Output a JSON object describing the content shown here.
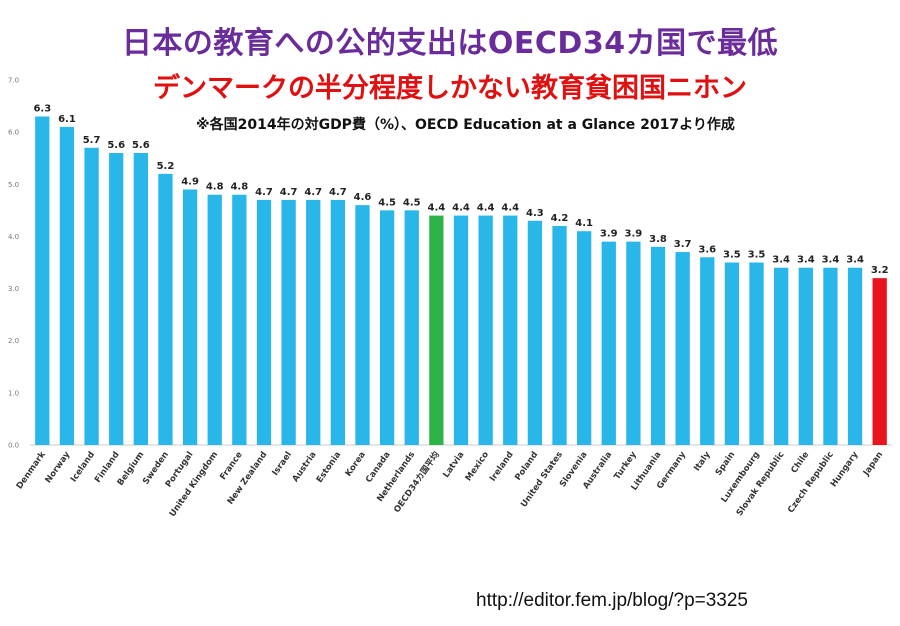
{
  "title": "日本の教育への公的支出はOECD34カ国で最低",
  "subtitle": "デンマークの半分程度しかない教育貧困国ニホン",
  "note": "※各国2014年の対GDP費（%）、OECD Education at a Glance 2017より作成",
  "source_url": "http://editor.fem.jp/blog/?p=3325",
  "colors": {
    "default_bar": "#29b6e8",
    "average_bar": "#2db34a",
    "japan_bar": "#e8141e",
    "title": "#6a2c9a",
    "subtitle": "#e01010"
  },
  "chart_data": {
    "type": "bar",
    "categories": [
      "Denmark",
      "Norway",
      "Iceland",
      "Finland",
      "Belgium",
      "Sweden",
      "Portugal",
      "United Kingdom",
      "France",
      "New Zealand",
      "Israel",
      "Austria",
      "Estonia",
      "Korea",
      "Canada",
      "Netherlands",
      "OECD34カ国平均",
      "Latvia",
      "Mexico",
      "Ireland",
      "Poland",
      "United States",
      "Slovenia",
      "Australia",
      "Turkey",
      "Lithuania",
      "Germany",
      "Italy",
      "Spain",
      "Luxembourg",
      "Slovak Republic",
      "Chile",
      "Czech Republic",
      "Hungary",
      "Japan"
    ],
    "values": [
      6.3,
      6.1,
      5.7,
      5.6,
      5.6,
      5.2,
      4.9,
      4.8,
      4.8,
      4.7,
      4.7,
      4.7,
      4.7,
      4.6,
      4.5,
      4.5,
      4.4,
      4.4,
      4.4,
      4.4,
      4.3,
      4.2,
      4.1,
      3.9,
      3.9,
      3.8,
      3.7,
      3.6,
      3.5,
      3.5,
      3.4,
      3.4,
      3.4,
      3.4,
      3.2
    ],
    "data_labels": [
      "6.3",
      "6.1",
      "5.7",
      "5.6",
      "5.6",
      "5.2",
      "4.9",
      "4.8",
      "4.8",
      "4.7",
      "4.7",
      "4.7",
      "4.7",
      "4.6",
      "4.5",
      "4.5",
      "4.4",
      "4.4",
      "4.4",
      "4.4",
      "4.3",
      "4.2",
      "4.1",
      "3.9",
      "3.9",
      "3.8",
      "3.7",
      "3.6",
      "3.5",
      "3.5",
      "3.4",
      "3.4",
      "3.4",
      "3.4",
      "3.2"
    ],
    "yticks": [
      "0.0",
      "1.0",
      "2.0",
      "3.0",
      "4.0",
      "5.0",
      "6.0",
      "7.0"
    ],
    "ylim": [
      0,
      7
    ],
    "highlight": {
      "OECD34カ国平均": "average",
      "Japan": "japan"
    }
  }
}
